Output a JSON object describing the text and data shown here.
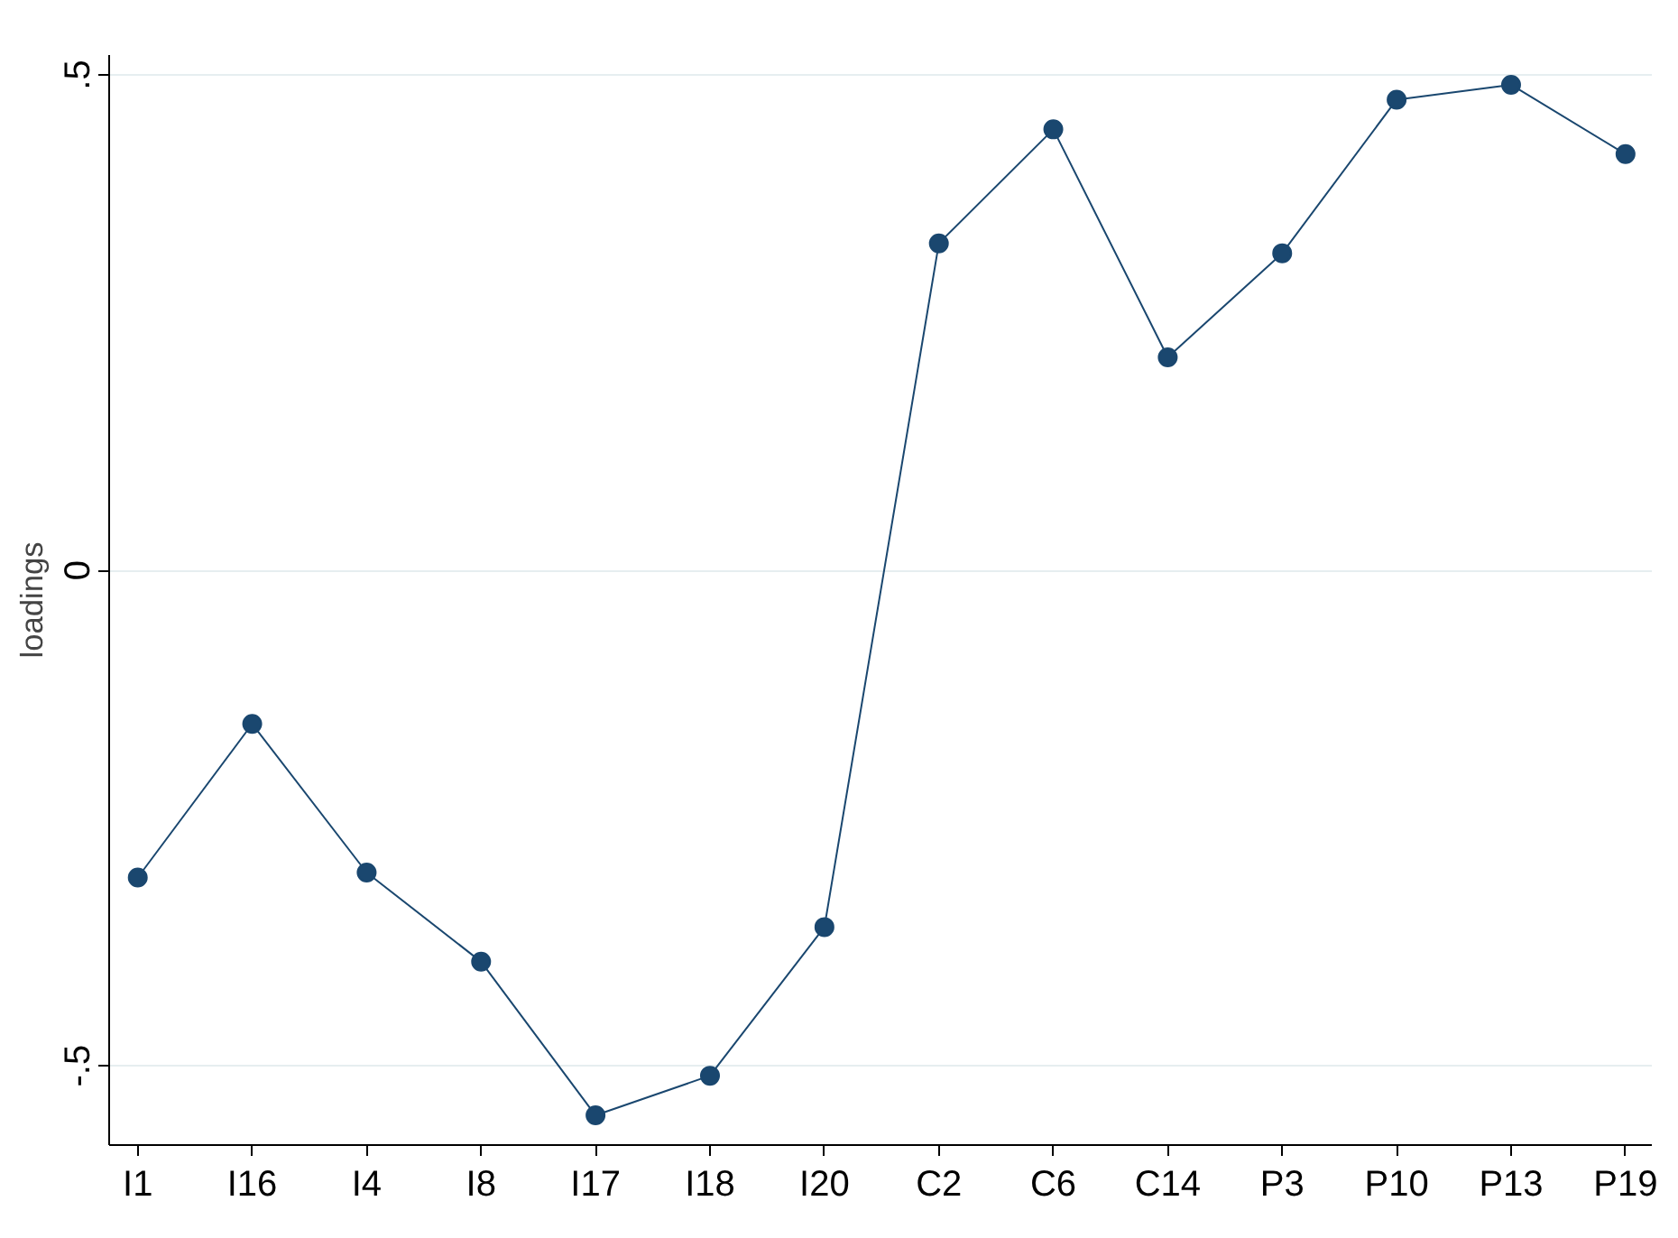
{
  "chart_data": {
    "type": "line",
    "ylabel": "loadings",
    "categories": [
      "I1",
      "I16",
      "I4",
      "I8",
      "I17",
      "I18",
      "I20",
      "C2",
      "C6",
      "C14",
      "P3",
      "P10",
      "P13",
      "P19"
    ],
    "series": [
      {
        "color": "#1a476f",
        "values": [
          -0.31,
          -0.155,
          -0.305,
          -0.395,
          -0.55,
          -0.51,
          -0.36,
          0.33,
          0.445,
          0.215,
          0.32,
          0.475,
          0.49,
          0.42
        ]
      }
    ],
    "ylim": [
      -0.58,
      0.52
    ],
    "yticks": [
      {
        "value": -0.5,
        "label": "-.5"
      },
      {
        "value": 0,
        "label": "0"
      },
      {
        "value": 0.5,
        "label": ".5"
      }
    ],
    "grid": "y",
    "marker": "circle",
    "line_style": "solid"
  }
}
